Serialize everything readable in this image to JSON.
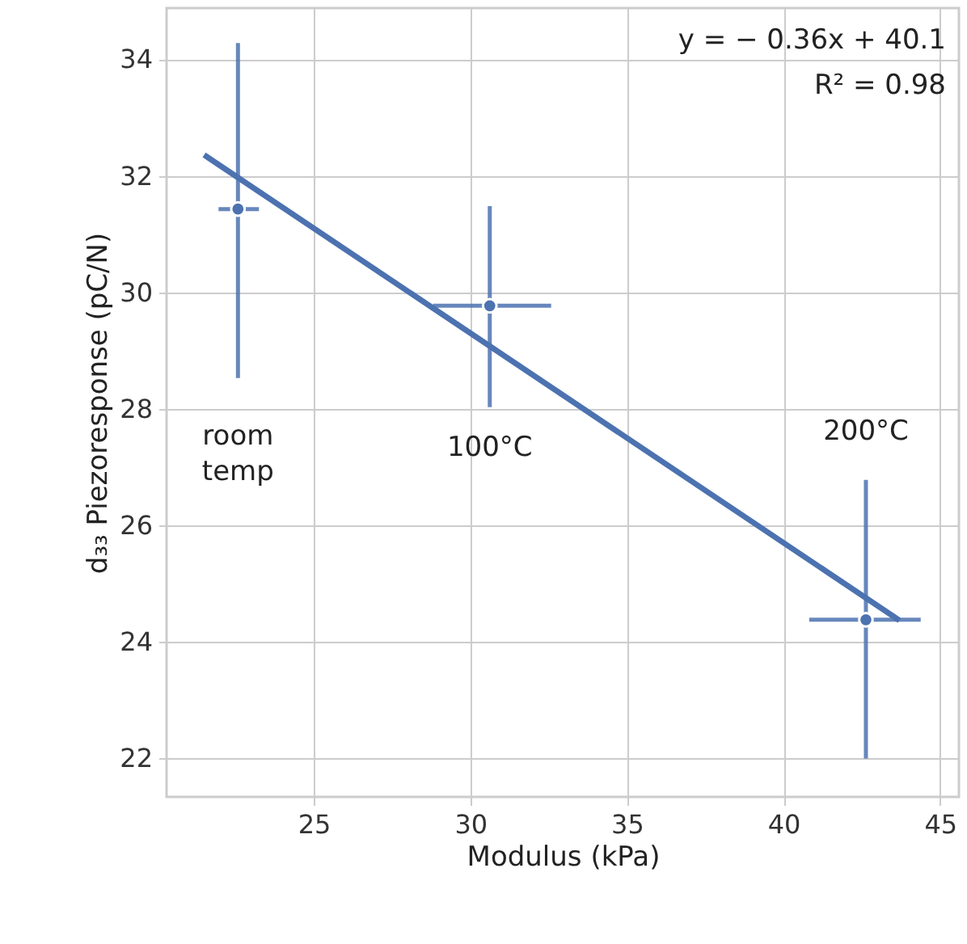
{
  "chart_data": {
    "type": "scatter",
    "xlabel": "Modulus (kPa)",
    "ylabel": "d₃₃ Piezoresponse (pC/N)",
    "xlim": [
      20.3,
      45.6
    ],
    "ylim": [
      21.34,
      34.88
    ],
    "xticks": [
      25,
      30,
      35,
      40,
      45
    ],
    "yticks": [
      22,
      24,
      26,
      28,
      30,
      32,
      34
    ],
    "grid": true,
    "series": [
      {
        "type": "scatter",
        "marker": "circle",
        "color": "#4c72b0",
        "x": [
          22.58,
          30.62,
          42.63
        ],
        "values": [
          31.43,
          29.77,
          24.38
        ],
        "errors": [
          [
            28.53,
            34.28
          ],
          [
            28.03,
            31.48
          ],
          [
            22.0,
            26.78
          ]
        ],
        "xerrors": [
          [
            21.96,
            23.25
          ],
          [
            28.81,
            32.58
          ],
          [
            40.82,
            44.38
          ]
        ]
      },
      {
        "type": "line",
        "marker": "none",
        "color": "#4c72b0",
        "x": [
          21.5,
          43.7
        ],
        "values": [
          32.36,
          24.37
        ]
      }
    ],
    "annotations": [
      "room\ntemp",
      "100°C",
      "200°C",
      "y = − 0.36x + 40.1",
      "R² = 0.98"
    ]
  }
}
